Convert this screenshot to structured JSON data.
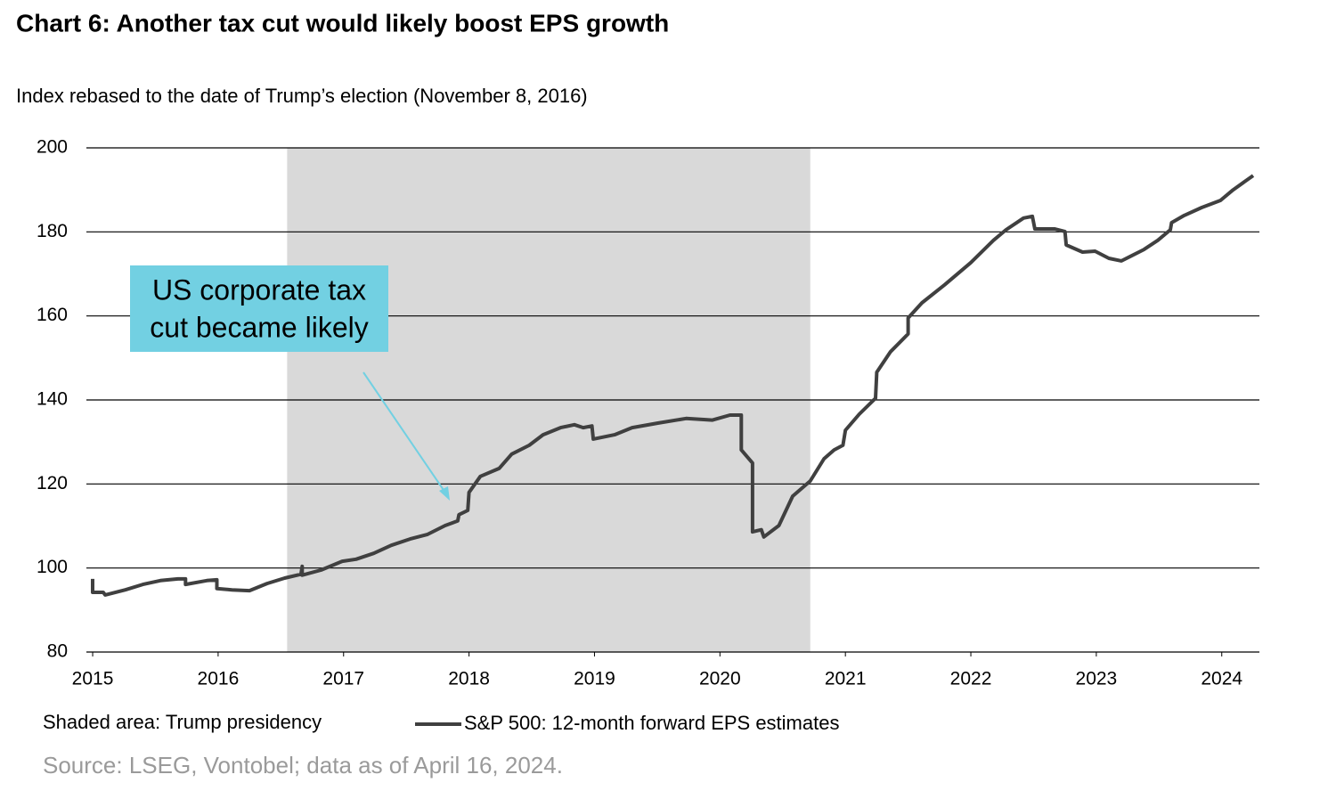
{
  "chart_data": {
    "type": "line",
    "title": "Chart 6: Another tax cut would likely boost EPS growth",
    "subtitle": "Index rebased to the date of Trump’s election (November 8, 2016)",
    "source": "Source: LSEG, Vontobel; data as of April 16, 2024.",
    "annotation": {
      "text": [
        "US corporate tax",
        "cut became likely"
      ],
      "color": "#72d0e2"
    },
    "shade": {
      "label": "Shaded area: Trump presidency",
      "x": [
        2016.55,
        2020.72
      ],
      "color": "#d9d9d9"
    },
    "xlim": [
      2014.95,
      2024.3
    ],
    "xticks": [
      2015,
      2016,
      2017,
      2018,
      2019,
      2020,
      2021,
      2022,
      2023,
      2024
    ],
    "ylim": [
      80,
      200
    ],
    "yticks": [
      80,
      100,
      120,
      140,
      160,
      180,
      200
    ],
    "grid": true,
    "series": [
      {
        "name": "S&P 500: 12-month forward EPS estimates",
        "color": "#404040",
        "x": [
          2015.0,
          2015.0,
          2015.085,
          2015.1,
          2015.26,
          2015.4,
          2015.54,
          2015.68,
          2015.74,
          2015.74,
          2015.91,
          2015.99,
          2015.99,
          2016.11,
          2016.25,
          2016.39,
          2016.53,
          2016.66,
          2016.67,
          2016.67,
          2016.82,
          2016.99,
          2017.1,
          2017.24,
          2017.38,
          2017.53,
          2017.67,
          2017.81,
          2017.91,
          2017.92,
          2017.99,
          2018.0,
          2018.09,
          2018.24,
          2018.34,
          2018.48,
          2018.59,
          2018.73,
          2018.84,
          2018.91,
          2018.98,
          2018.99,
          2019.16,
          2019.3,
          2019.51,
          2019.73,
          2019.94,
          2020.08,
          2020.17,
          2020.17,
          2020.26,
          2020.26,
          2020.33,
          2020.35,
          2020.47,
          2020.58,
          2020.72,
          2020.83,
          2020.91,
          2020.98,
          2021.0,
          2021.11,
          2021.24,
          2021.25,
          2021.36,
          2021.5,
          2021.5,
          2021.61,
          2021.79,
          2022.0,
          2022.18,
          2022.28,
          2022.42,
          2022.49,
          2022.51,
          2022.67,
          2022.75,
          2022.76,
          2022.89,
          2022.99,
          2023.1,
          2023.2,
          2023.38,
          2023.49,
          2023.59,
          2023.6,
          2023.7,
          2023.84,
          2023.99,
          2024.09,
          2024.25
        ],
        "values": [
          97.4,
          94.2,
          94.2,
          93.6,
          94.8,
          96.1,
          97.0,
          97.4,
          97.4,
          96.1,
          97.0,
          97.2,
          95.1,
          94.8,
          94.6,
          96.3,
          97.6,
          98.5,
          100.4,
          98.3,
          99.5,
          101.6,
          102.1,
          103.5,
          105.4,
          106.9,
          108.0,
          110.1,
          111.2,
          112.7,
          113.7,
          118.0,
          121.8,
          123.7,
          127.1,
          129.2,
          131.7,
          133.4,
          134.1,
          133.4,
          133.8,
          130.7,
          131.7,
          133.4,
          134.5,
          135.6,
          135.2,
          136.4,
          136.4,
          128.1,
          125.0,
          108.6,
          109.1,
          107.4,
          110.1,
          117.1,
          120.7,
          126.0,
          128.1,
          129.2,
          132.8,
          136.6,
          140.4,
          146.6,
          151.5,
          155.7,
          159.5,
          163.1,
          167.4,
          172.7,
          178.0,
          180.5,
          183.3,
          183.7,
          180.7,
          180.7,
          180.1,
          176.9,
          175.2,
          175.4,
          173.7,
          173.1,
          175.8,
          178.0,
          180.5,
          182.2,
          183.9,
          185.8,
          187.5,
          190.0,
          193.4
        ]
      }
    ]
  }
}
